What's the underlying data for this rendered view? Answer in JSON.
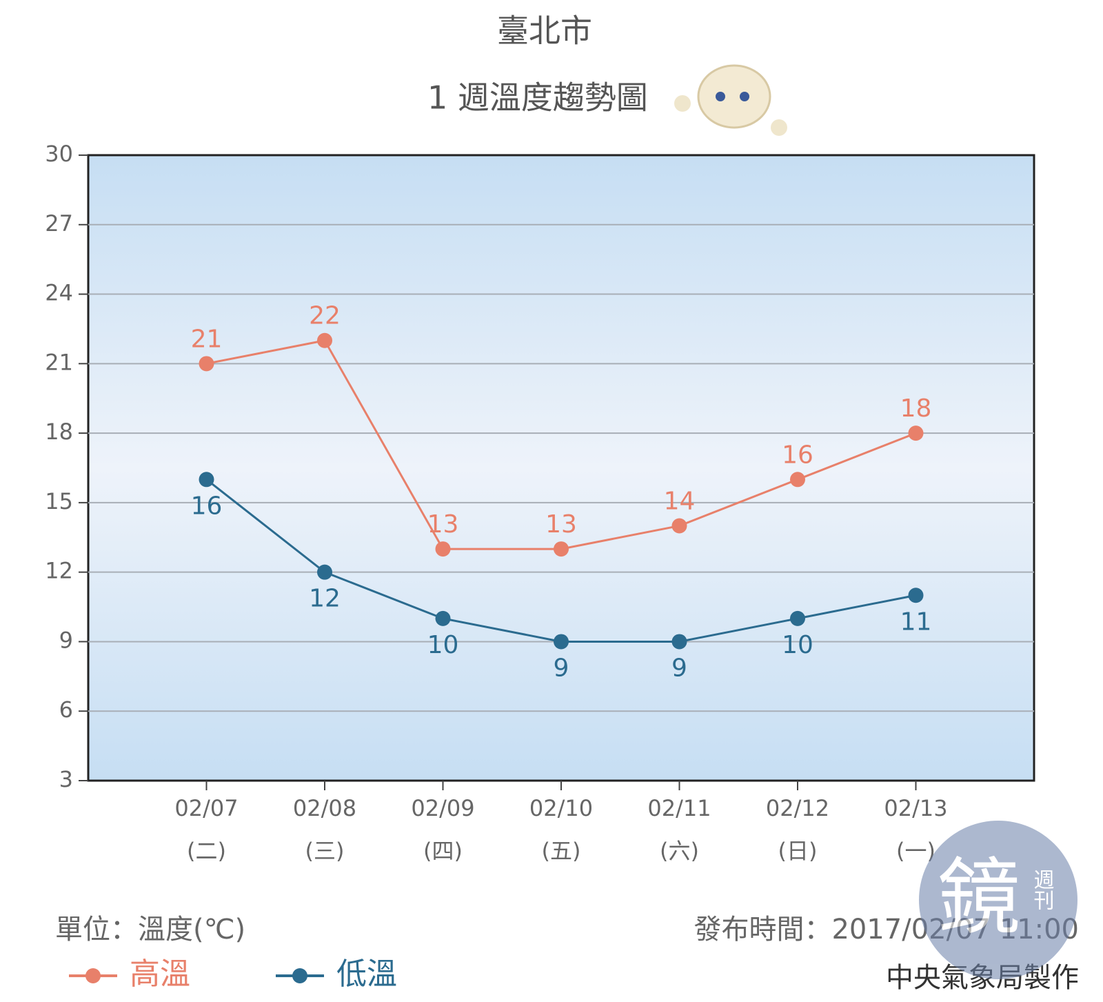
{
  "chart_data": {
    "type": "line",
    "title": "臺北市",
    "subtitle": "1 週溫度趨勢圖",
    "categories": [
      "02/07",
      "02/08",
      "02/09",
      "02/10",
      "02/11",
      "02/12",
      "02/13"
    ],
    "weekdays": [
      "(二)",
      "(三)",
      "(四)",
      "(五)",
      "(六)",
      "(日)",
      "(一)"
    ],
    "series": [
      {
        "name": "高溫",
        "color": "#e8806a",
        "values": [
          21,
          22,
          13,
          13,
          14,
          16,
          18
        ]
      },
      {
        "name": "低溫",
        "color": "#2b6b8f",
        "values": [
          16,
          12,
          10,
          9,
          9,
          10,
          11
        ]
      }
    ],
    "ylim": [
      3,
      30
    ],
    "yticks": [
      3,
      6,
      9,
      12,
      15,
      18,
      21,
      24,
      27,
      30
    ],
    "grid": true,
    "unit": "單位：溫度(℃)",
    "published": "發布時間：2017/02/07 11:00",
    "credit": "中央氣象局製作",
    "watermark": [
      "鏡",
      "週刊"
    ]
  }
}
